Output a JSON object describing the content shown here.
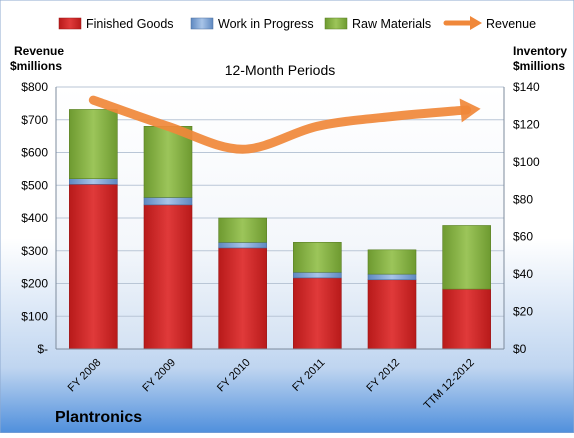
{
  "chart_data": {
    "type": "bar",
    "stacked": true,
    "title": "12-Month Periods",
    "company": "Plantronics",
    "left_axis_title": [
      "Revenue",
      "$millions"
    ],
    "right_axis_title": [
      "Inventory",
      "$millions"
    ],
    "categories": [
      "FY 2008",
      "FY 2009",
      "FY 2010",
      "FY 2011",
      "FY 2012",
      "TTM 12-2012"
    ],
    "series": [
      {
        "name": "Finished Goods",
        "axis": "right",
        "color": "#D42A2A",
        "values": [
          88,
          77,
          54,
          38,
          37,
          32
        ]
      },
      {
        "name": "Work in Progress",
        "axis": "right",
        "color": "#7FA6D6",
        "values": [
          3,
          4,
          3,
          3,
          3,
          0
        ]
      },
      {
        "name": "Raw Materials",
        "axis": "right",
        "color": "#8DB64A",
        "values": [
          37,
          38,
          13,
          16,
          13,
          34
        ]
      },
      {
        "name": "Revenue",
        "axis": "left",
        "type": "line",
        "color": "#F0883A",
        "values": [
          760,
          680,
          610,
          680,
          710,
          730
        ]
      }
    ],
    "left_axis": {
      "min": 0,
      "max": 800,
      "step": 100,
      "tick_labels": [
        "$-",
        "$100",
        "$200",
        "$300",
        "$400",
        "$500",
        "$600",
        "$700",
        "$800"
      ]
    },
    "right_axis": {
      "min": 0,
      "max": 140,
      "step": 20,
      "tick_labels": [
        "$0",
        "$20",
        "$40",
        "$60",
        "$80",
        "$100",
        "$120",
        "$140"
      ]
    },
    "legend_position": "top",
    "grid": true
  }
}
